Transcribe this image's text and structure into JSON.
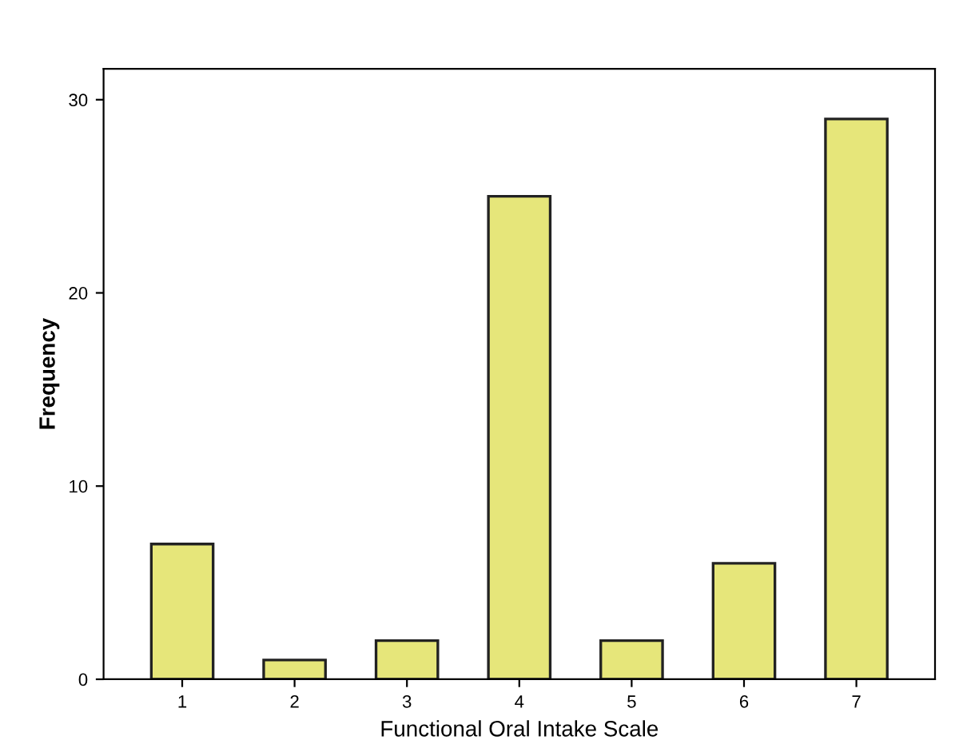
{
  "chart_data": {
    "type": "bar",
    "xlabel": "Functional Oral Intake Scale",
    "ylabel": "Frequency",
    "categories": [
      "1",
      "2",
      "3",
      "4",
      "5",
      "6",
      "7"
    ],
    "values": [
      7,
      1,
      2,
      25,
      2,
      6,
      29
    ],
    "color": "#e6e67a",
    "ylim": [
      0,
      31.6
    ],
    "yticks": [
      0,
      10,
      20,
      30
    ],
    "grid": false
  }
}
